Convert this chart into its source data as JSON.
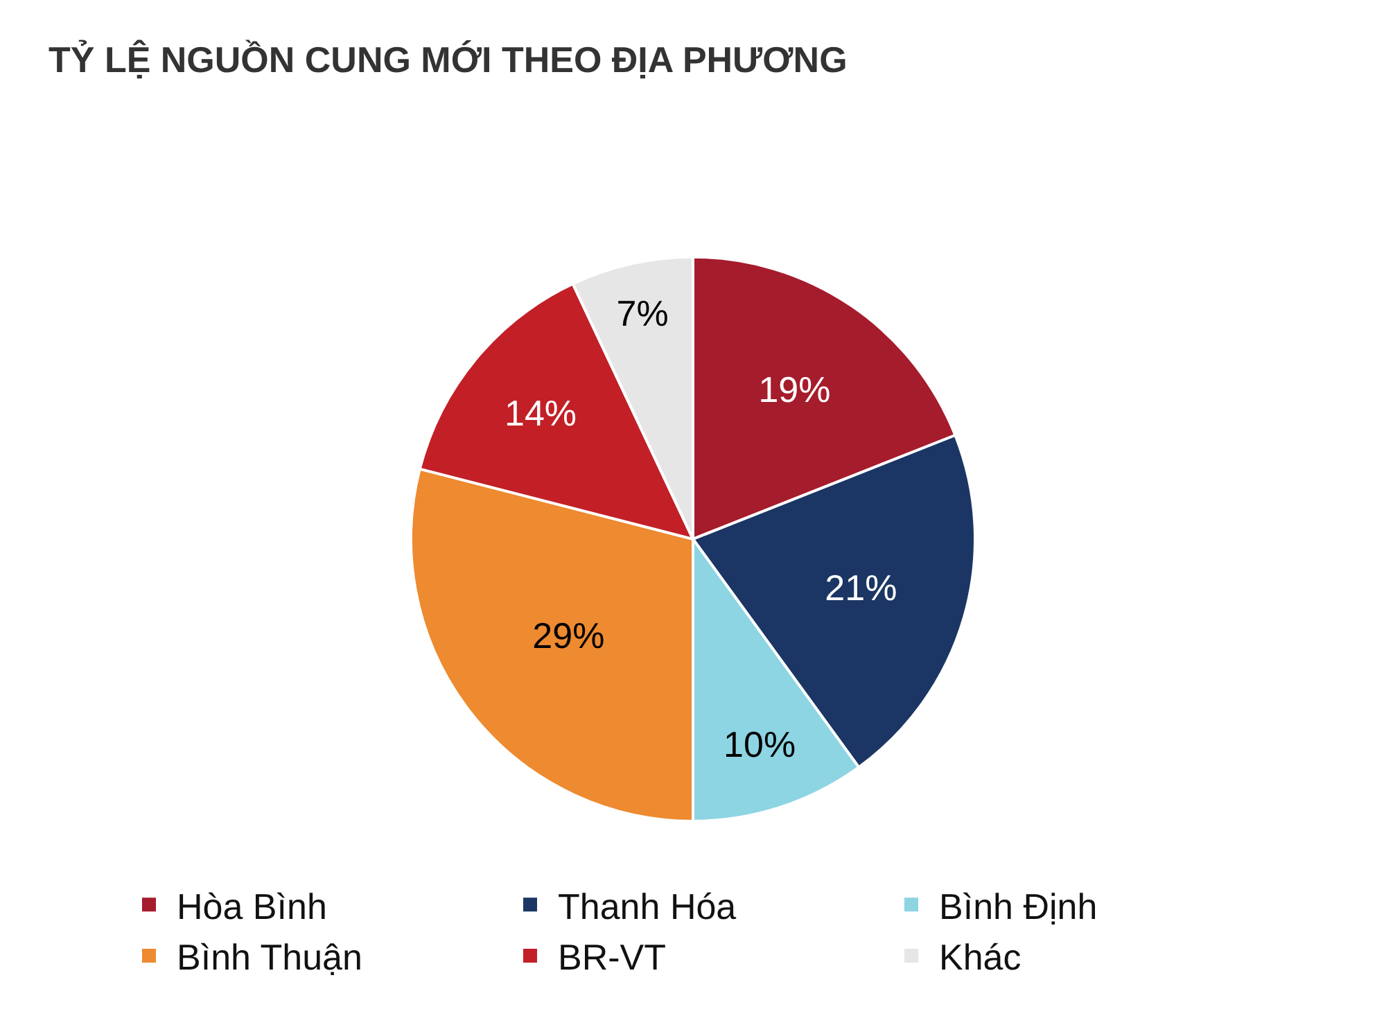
{
  "chart_data": {
    "type": "pie",
    "title": "TỶ LỆ NGUỒN CUNG MỚI THEO ĐỊA PHƯƠNG",
    "categories": [
      "Hòa Bình",
      "Thanh Hóa",
      "Bình Định",
      "Bình Thuận",
      "BR-VT",
      "Khác"
    ],
    "values": [
      19,
      21,
      10,
      29,
      14,
      7
    ],
    "colors": [
      "#a51c2c",
      "#1b3664",
      "#8dd5e3",
      "#ee8a30",
      "#c21f27",
      "#e6e6e6"
    ],
    "value_labels": [
      "19%",
      "21%",
      "10%",
      "29%",
      "14%",
      "7%"
    ],
    "legend": "bottom"
  }
}
